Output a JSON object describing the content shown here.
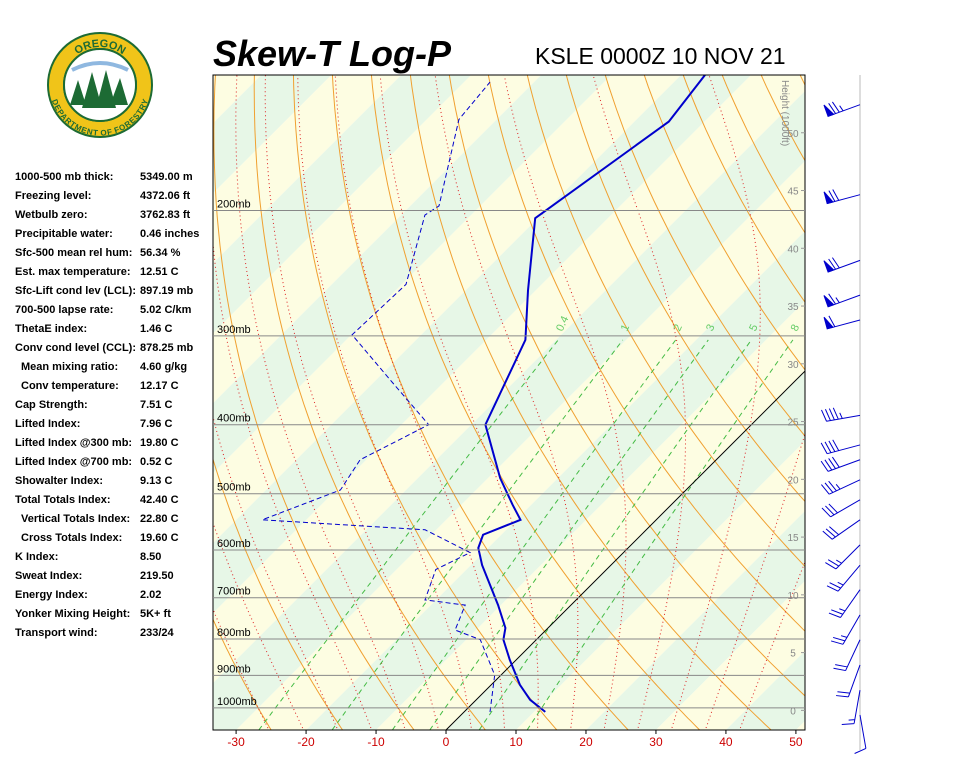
{
  "logo": {
    "top": "OREGON",
    "bottom": "DEPARTMENT OF FORESTRY"
  },
  "indices": [
    [
      "1000-500 mb thick:",
      "5349.00 m"
    ],
    [
      "Freezing level:",
      "4372.06 ft"
    ],
    [
      "Wetbulb zero:",
      "3762.83 ft"
    ],
    [
      "Precipitable water:",
      "0.46 inches"
    ],
    [
      "Sfc-500 mean rel hum:",
      "56.34 %"
    ],
    [
      "Est. max temperature:",
      "12.51 C"
    ],
    [
      "Sfc-Lift cond lev (LCL):",
      "897.19 mb"
    ],
    [
      "700-500 lapse rate:",
      "5.02 C/km"
    ],
    [
      "ThetaE index:",
      "1.46 C"
    ],
    [
      "Conv cond level (CCL):",
      "878.25 mb"
    ],
    [
      "Mean mixing ratio:",
      "4.60 g/kg"
    ],
    [
      "Conv temperature:",
      "12.17 C"
    ],
    [
      "Cap Strength:",
      "7.51 C"
    ],
    [
      "Lifted Index:",
      "7.96 C"
    ],
    [
      "Lifted Index @300 mb:",
      "19.80 C"
    ],
    [
      "Lifted Index @700 mb:",
      "0.52 C"
    ],
    [
      "Showalter Index:",
      "9.13 C"
    ],
    [
      "Total Totals Index:",
      "42.40 C"
    ],
    [
      "Vertical Totals Index:",
      "22.80 C"
    ],
    [
      "Cross Totals Index:",
      "19.60 C"
    ],
    [
      "K Index:",
      "8.50"
    ],
    [
      "Sweat Index:",
      "219.50"
    ],
    [
      "Energy Index:",
      "2.02"
    ],
    [
      "Yonker Mixing Height:",
      "5K+ ft"
    ],
    [
      "Transport wind:",
      "233/24"
    ]
  ],
  "chart_data": {
    "type": "skewt",
    "title": "Skew-T Log-P",
    "subtitle": "KSLE 0000Z 10 NOV 21",
    "xlim": [
      -33.3,
      51.3
    ],
    "xticks": [
      -30,
      -20,
      -10,
      0,
      10,
      20,
      30,
      40,
      50
    ],
    "ylim": [
      1074,
      129
    ],
    "y_scale": "log",
    "yticks": [
      {
        "value": 1000,
        "label": "1000mb"
      },
      {
        "value": 900,
        "label": "900mb"
      },
      {
        "value": 800,
        "label": "800mb"
      },
      {
        "value": 700,
        "label": "700mb"
      },
      {
        "value": 600,
        "label": "600mb"
      },
      {
        "value": 500,
        "label": "500mb"
      },
      {
        "value": 400,
        "label": "400mb"
      },
      {
        "value": 300,
        "label": "300mb"
      },
      {
        "value": 200,
        "label": "200mb"
      }
    ],
    "height_axis": {
      "label": "Height (1000ft)",
      "lim": [
        -1.7,
        55
      ],
      "ticks": [
        0,
        5,
        10,
        15,
        20,
        25,
        30,
        35,
        40,
        45,
        50
      ]
    },
    "temperature": {
      "color": "#0000cc",
      "pressure": [
        1013,
        974,
        928,
        856,
        802,
        772,
        717,
        630,
        596,
        571,
        544,
        518,
        475,
        400,
        304,
        259,
        205,
        150,
        129
      ],
      "values": [
        11.6,
        7.7,
        4.1,
        -0.9,
        -4.7,
        -6.1,
        -10.4,
        -18.4,
        -21.4,
        -22.6,
        -19.4,
        -22.7,
        -28.3,
        -38,
        -44.4,
        -51.1,
        -60.4,
        -55.1,
        -56.6
      ]
    },
    "dewpoint": {
      "color": "#0000cc",
      "pressure": [
        1013,
        899,
        802,
        777,
        717,
        705,
        639,
        605,
        562,
        544,
        494,
        448,
        400,
        346,
        299,
        254,
        203,
        197,
        149,
        132
      ],
      "values": [
        3.7,
        -0.9,
        -8,
        -13,
        -15.1,
        -21.6,
        -24.4,
        -21.9,
        -31.6,
        -56.3,
        -49.4,
        -50.9,
        -46.1,
        -58,
        -69.9,
        -69.4,
        -76.6,
        -75.9,
        -85.4,
        -86.3
      ]
    },
    "mixing_ratio": {
      "color": "#44bb44",
      "values": [
        0.4,
        1,
        2,
        3,
        5,
        8
      ]
    },
    "wind_barbs": {
      "color": "#0000cc",
      "pressure": [
        142,
        190,
        235,
        263,
        285,
        388,
        427,
        448,
        478,
        510,
        544,
        590,
        630,
        682,
        740,
        802,
        870,
        944,
        1023
      ],
      "direction": [
        250,
        255,
        250,
        250,
        255,
        260,
        255,
        250,
        245,
        240,
        235,
        225,
        220,
        215,
        210,
        205,
        200,
        190,
        170
      ],
      "speed": [
        75,
        70,
        70,
        65,
        60,
        45,
        40,
        40,
        35,
        30,
        30,
        25,
        25,
        25,
        25,
        20,
        20,
        15,
        10
      ]
    }
  }
}
